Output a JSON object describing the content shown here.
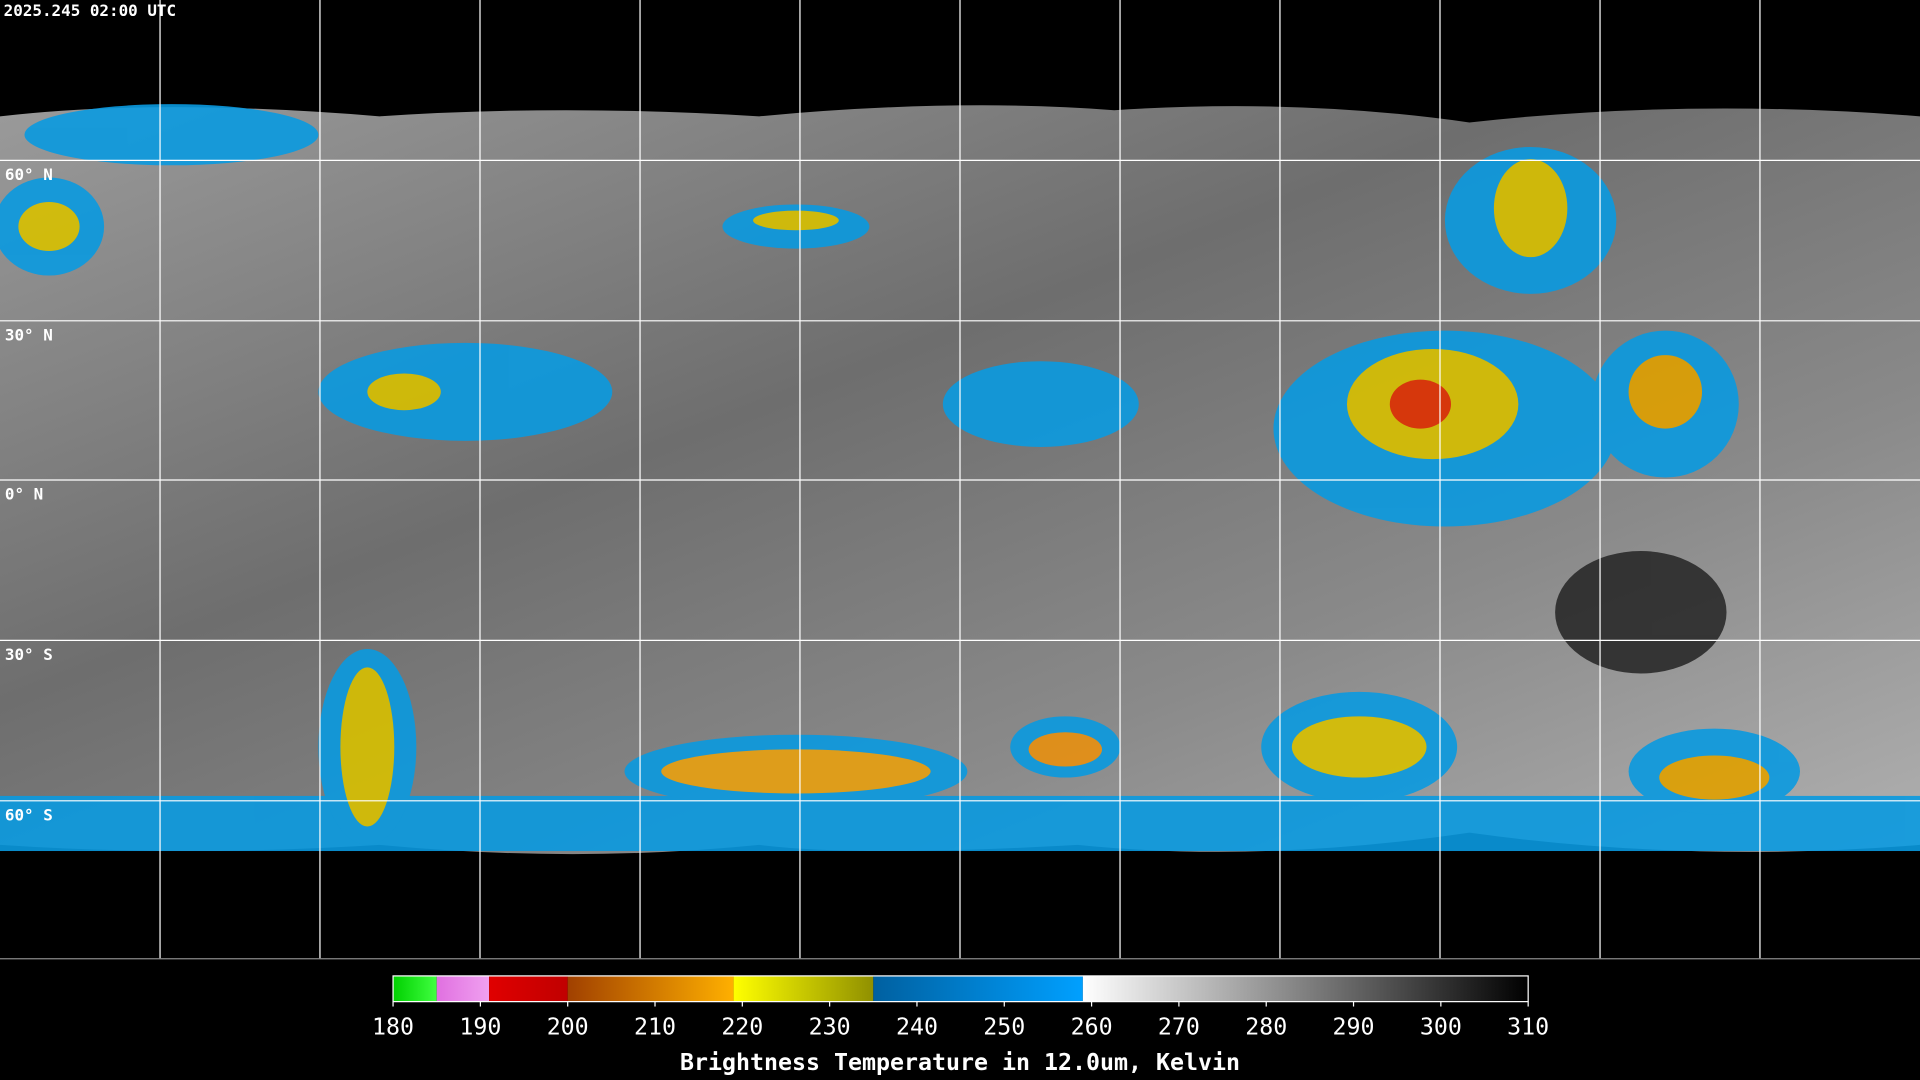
{
  "header": {
    "title": "2025.245 02:00 UTC"
  },
  "map": {
    "latitude_labels": [
      "60° N",
      "30° N",
      "0° N",
      "30° S",
      "60° S"
    ]
  },
  "colorbar": {
    "range": [
      180,
      310
    ],
    "ticks": [
      180,
      190,
      200,
      210,
      220,
      230,
      240,
      250,
      260,
      270,
      280,
      290,
      300,
      310
    ],
    "label": "Brightness Temperature in 12.0um, Kelvin",
    "segments": [
      {
        "from": 180,
        "to": 185,
        "colors": [
          "#00d000",
          "#40ff40"
        ]
      },
      {
        "from": 185,
        "to": 191,
        "colors": [
          "#e070e0",
          "#f0a0f0"
        ]
      },
      {
        "from": 191,
        "to": 200,
        "colors": [
          "#e00000",
          "#c00000"
        ]
      },
      {
        "from": 200,
        "to": 219,
        "colors": [
          "#a04000",
          "#ffb000"
        ]
      },
      {
        "from": 219,
        "to": 235,
        "colors": [
          "#ffff00",
          "#909000"
        ]
      },
      {
        "from": 235,
        "to": 259,
        "colors": [
          "#0060a0",
          "#00a0ff"
        ]
      },
      {
        "from": 259,
        "to": 310,
        "colors": [
          "#ffffff",
          "#000000"
        ]
      }
    ]
  }
}
